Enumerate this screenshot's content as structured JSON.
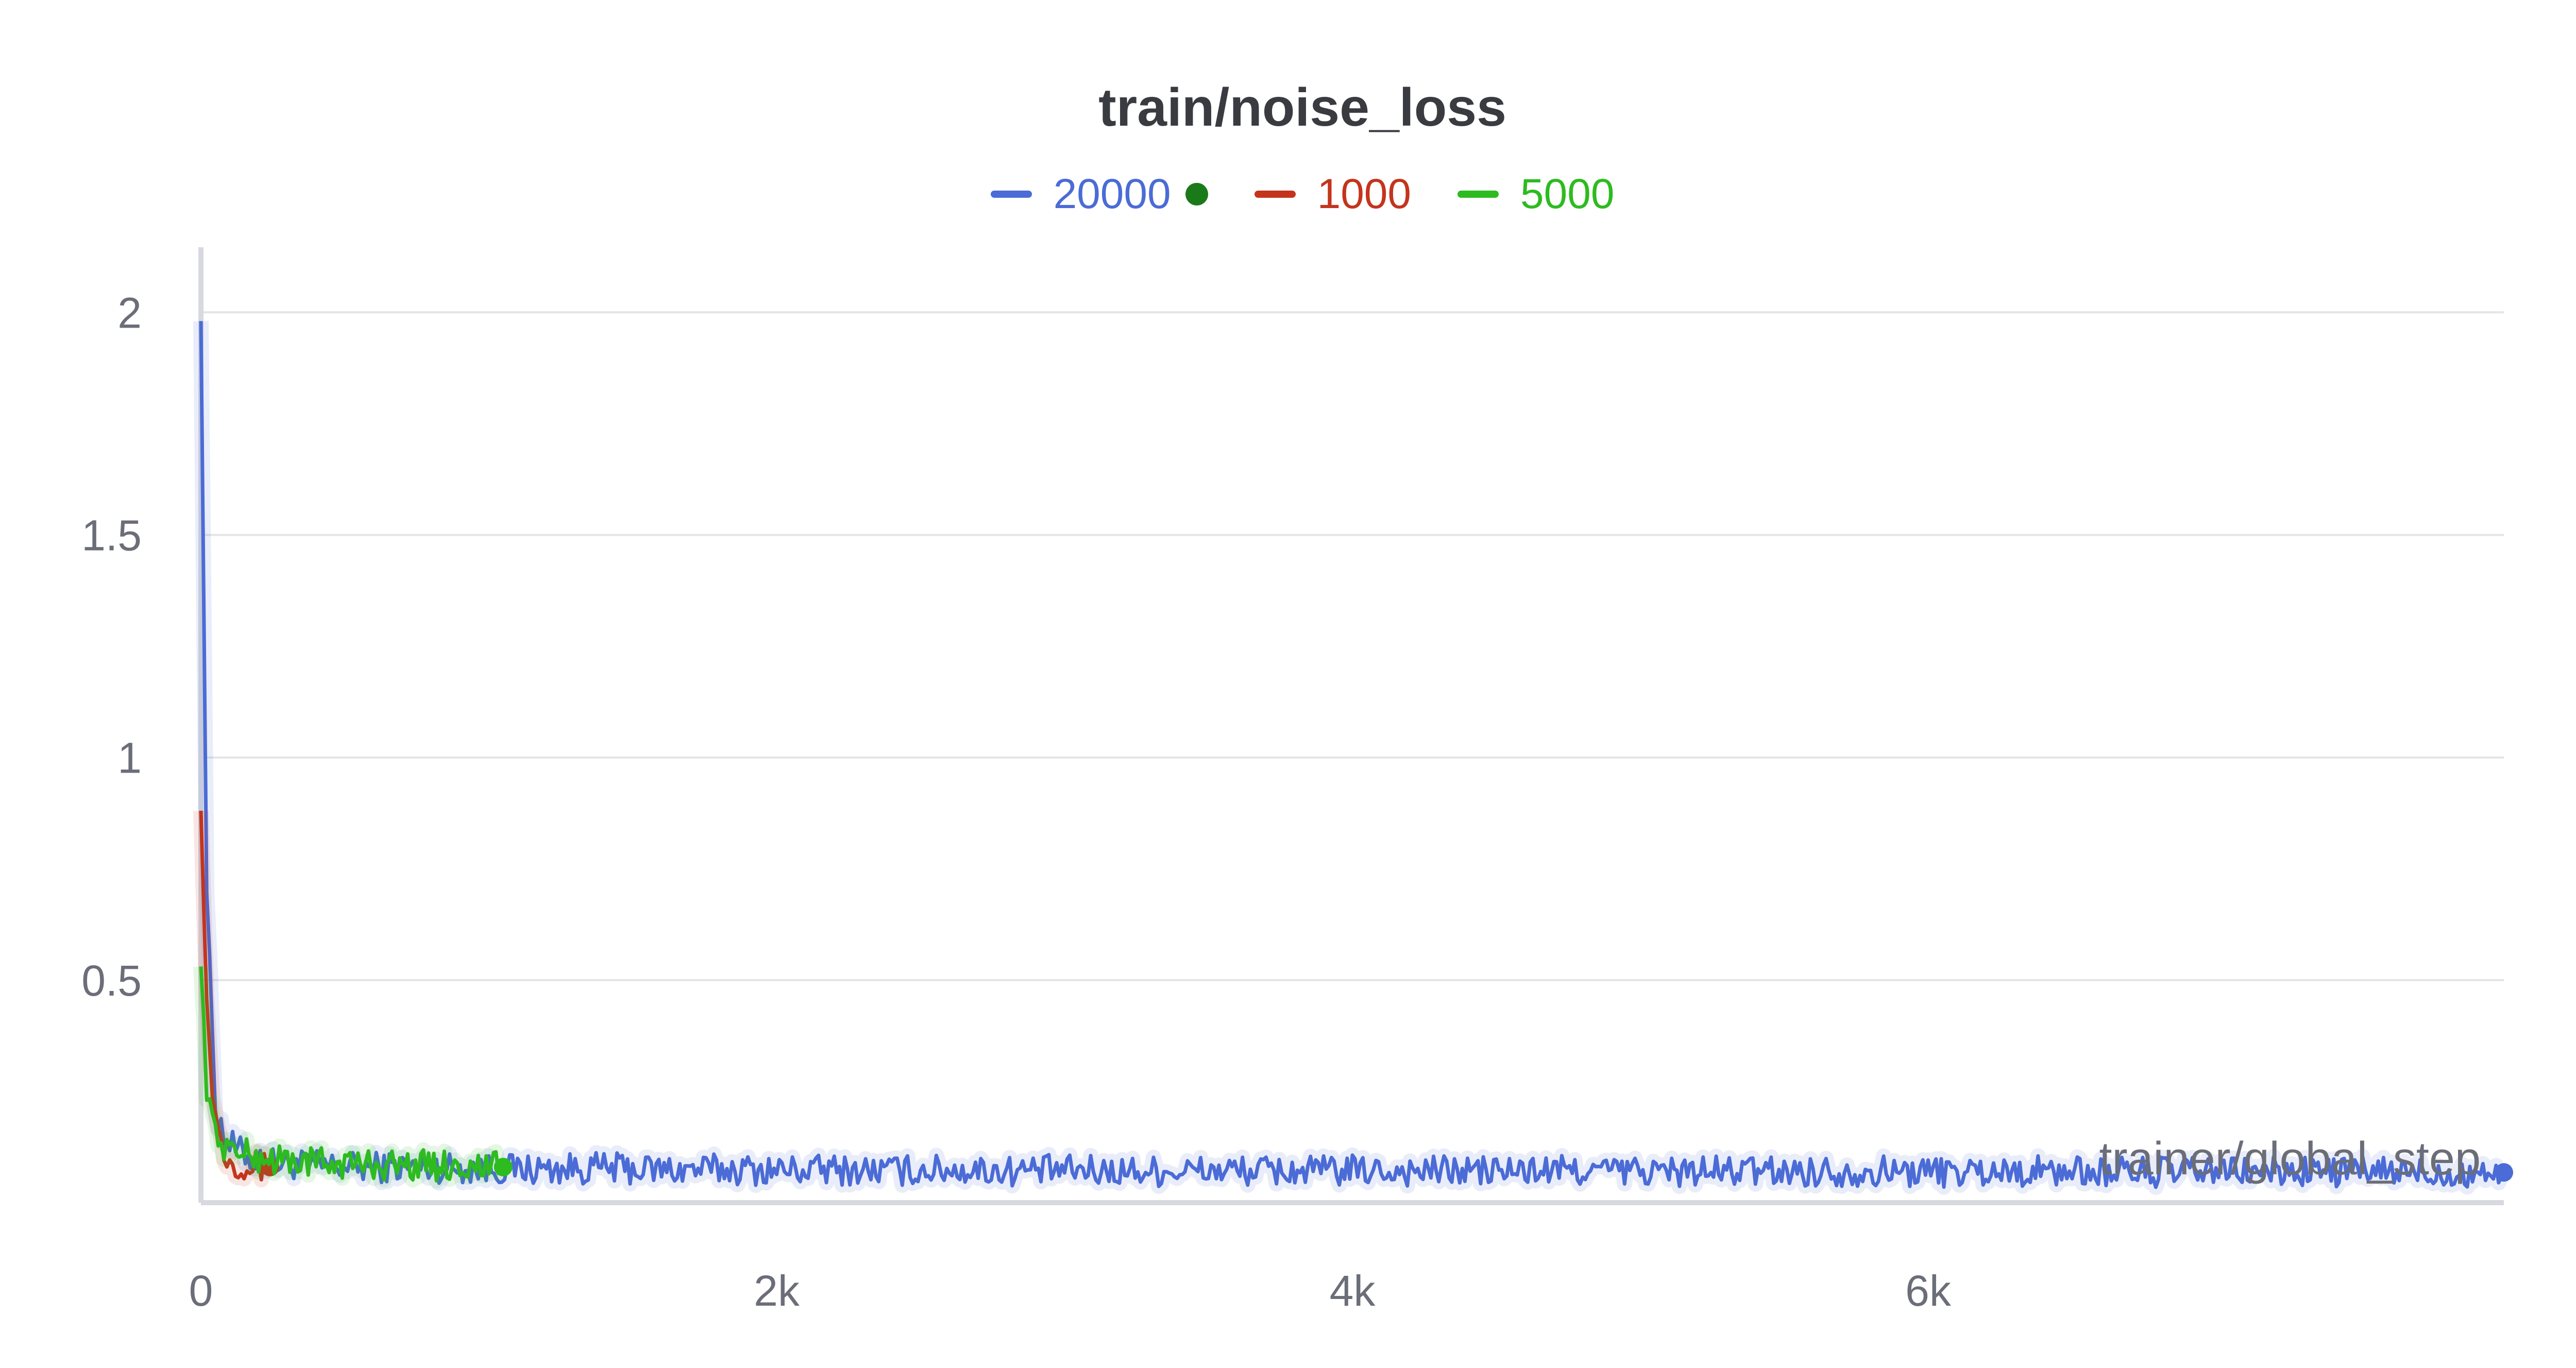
{
  "chart_data": {
    "type": "line",
    "title": "train/noise_loss",
    "xlabel": "trainer/global_step",
    "ylabel": "",
    "xlim": [
      0,
      8000
    ],
    "ylim": [
      0,
      2.1
    ],
    "x_ticks": [
      {
        "value": 0,
        "label": "0"
      },
      {
        "value": 2000,
        "label": "2k"
      },
      {
        "value": 4000,
        "label": "4k"
      },
      {
        "value": 6000,
        "label": "6k"
      }
    ],
    "y_ticks": [
      {
        "value": 0.5,
        "label": "0.5"
      },
      {
        "value": 1,
        "label": "1"
      },
      {
        "value": 1.5,
        "label": "1.5"
      },
      {
        "value": 2,
        "label": "2"
      }
    ],
    "grid": true,
    "legend_position": "top-center",
    "series": [
      {
        "name": "20000",
        "color": "#4b6bd6",
        "marker_color": "#1a7a1a",
        "x": [
          0,
          20,
          50,
          80,
          120,
          180,
          250,
          350,
          500,
          700,
          900,
          1000,
          1200,
          1400,
          1600,
          1800,
          2000,
          2200,
          2400,
          2600,
          2800,
          3000,
          3200,
          3400,
          3600,
          3800,
          4000,
          4200,
          4400,
          4600,
          4800,
          5000,
          5200,
          5400,
          5600,
          5800,
          6000,
          6200,
          6400,
          6600,
          6800,
          7000,
          7200,
          7400,
          7600,
          7800,
          8000
        ],
        "y": [
          2.0,
          0.7,
          0.22,
          0.15,
          0.12,
          0.1,
          0.09,
          0.085,
          0.08,
          0.08,
          0.078,
          0.076,
          0.075,
          0.078,
          0.074,
          0.075,
          0.073,
          0.074,
          0.072,
          0.074,
          0.072,
          0.073,
          0.071,
          0.072,
          0.072,
          0.071,
          0.072,
          0.071,
          0.072,
          0.071,
          0.073,
          0.071,
          0.07,
          0.071,
          0.07,
          0.071,
          0.07,
          0.07,
          0.071,
          0.07,
          0.069,
          0.07,
          0.069,
          0.07,
          0.069,
          0.068,
          0.068
        ]
      },
      {
        "name": "1000",
        "color": "#c4341d",
        "x": [
          0,
          20,
          40,
          60,
          80,
          100,
          130,
          160,
          200,
          240
        ],
        "y": [
          0.9,
          0.45,
          0.25,
          0.16,
          0.12,
          0.1,
          0.09,
          0.085,
          0.08,
          0.08
        ]
      },
      {
        "name": "5000",
        "color": "#2dbb1f",
        "x": [
          0,
          20,
          40,
          60,
          80,
          100,
          150,
          200,
          300,
          400,
          500,
          600,
          700,
          800,
          900,
          1000,
          1050
        ],
        "y": [
          0.55,
          0.25,
          0.18,
          0.15,
          0.13,
          0.12,
          0.11,
          0.1,
          0.095,
          0.09,
          0.088,
          0.086,
          0.085,
          0.084,
          0.083,
          0.082,
          0.08
        ]
      }
    ]
  }
}
